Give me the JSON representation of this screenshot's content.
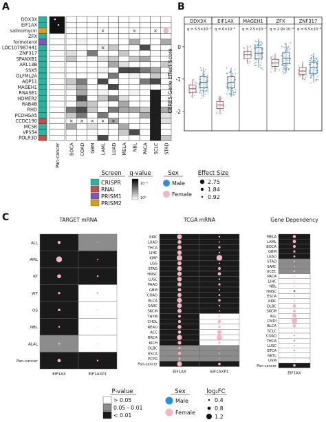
{
  "panel_labels": {
    "a": "A",
    "b": "B",
    "c": "C"
  },
  "panel_a": {
    "genes": [
      "DDX3X",
      "EIF1AX",
      "salinomycin",
      "ZFX",
      "formoterol",
      "LOC107987441",
      "ZNF317",
      "SPANXB1",
      "ARL13B",
      "SSX5",
      "OLFML2A",
      "AQP11",
      "MAGEH1",
      "RNASE1",
      "HOMER2",
      "RAB4B",
      "RHD",
      "PCDHGA5",
      "CCDC190",
      "MC5R",
      "VPS54",
      "POLR3D"
    ],
    "screen_of_gene": [
      "CRISPR",
      "CRISPR",
      "PRISM2",
      "CRISPR",
      "PRISM1",
      "CRISPR",
      "CRISPR",
      "CRISPR",
      "CRISPR",
      "CRISPR",
      "CRISPR",
      "CRISPR",
      "CRISPR",
      "CRISPR",
      "CRISPR",
      "CRISPR",
      "CRISPR",
      "CRISPR",
      "RNAi",
      "CRISPR",
      "CRISPR",
      "RNAi"
    ],
    "pan_cancer_label": "Pan-cancer",
    "cancer_types": [
      "BOCA",
      "COAD",
      "GBM",
      "LAML",
      "LUAD",
      "MELA",
      "NBL",
      "PACA",
      "SCLC",
      "STAD"
    ]
  },
  "legend_a": {
    "screen_title": "Screen",
    "screens": [
      {
        "label": "CRISPR",
        "color": "#2bb5a0"
      },
      {
        "label": "RNAi",
        "color": "#c0504d"
      },
      {
        "label": "PRISM1",
        "color": "#7b59b6"
      },
      {
        "label": "PRISM2",
        "color": "#d4a017"
      }
    ],
    "qvalue_title": "q-value",
    "qvalue_ticks": [
      "10⁻⁵",
      "10⁰"
    ],
    "sex_title": "Sex",
    "sex": [
      {
        "label": "Male",
        "color": "#2b8fe0"
      },
      {
        "label": "Female",
        "color": "#f4b6c2"
      }
    ],
    "effect_title": "Effect Size",
    "effect_values": [
      "2.75",
      "1.84",
      "0.92"
    ]
  },
  "panel_b": {
    "ylabel": "CERES Gene Effect Score",
    "yticks": [
      "0",
      "-1",
      "-2"
    ],
    "genes": [
      {
        "name": "DDX3X",
        "q": "q = 5.5×10⁻¹⁷",
        "female_median": -1.3,
        "male_median": -1.1
      },
      {
        "name": "EIF1AX",
        "q": "q = 6×10⁻⁹",
        "female_median": -1.8,
        "male_median": -1.1
      },
      {
        "name": "MAGEH1",
        "q": "q = 2.5×10⁻¹⁷",
        "female_median": -0.25,
        "male_median": -0.2
      },
      {
        "name": "ZFX",
        "q": "q = 2.9×10⁻¹⁰",
        "female_median": -0.5,
        "male_median": -0.35
      },
      {
        "name": "ZNF317",
        "q": "q = 6.5×10⁻⁸",
        "female_median": -0.75,
        "male_median": -0.65
      }
    ]
  },
  "panel_c": {
    "target": {
      "title": "TARGET mRNA",
      "rows": [
        "ALL",
        "AML",
        "RT",
        "WT",
        "OS",
        "NBL",
        "ALAL",
        "Pan-cancer"
      ],
      "cols": [
        "EIF1AX",
        "EIF1AXP1"
      ]
    },
    "tcga": {
      "title": "TCGA mRNA",
      "rows": [
        "KIRC",
        "LUAD",
        "THCA",
        "LIHC",
        "KIRP",
        "LGG",
        "STAD",
        "HNSC",
        "LUSC",
        "PAAD",
        "GBM",
        "COAD",
        "BLCA",
        "SARC",
        "SKCM",
        "THYM",
        "CHOL",
        "READ",
        "ACC",
        "BRCA",
        "KICH",
        "DLBC",
        "ESCA",
        "PCPG",
        "Pan-cancer"
      ],
      "cols": [
        "EIF1AX",
        "EIF1AXP1"
      ]
    },
    "gene_dep": {
      "title": "Gene Dependency",
      "rows": [
        "MELA",
        "LAML",
        "BOCA",
        "GBM",
        "LUAD",
        "STAD",
        "SARC",
        "UCEC",
        "PACA",
        "LIHC",
        "NBL",
        "HNSC",
        "ESCA",
        "KIRC",
        "DLBC",
        "SKCM",
        "ALL",
        "CMDI",
        "BLCA",
        "SCLC",
        "COAD",
        "THCA",
        "LUSC",
        "BTCA",
        "NKTL",
        "UVM",
        "Pan-cancer"
      ],
      "cols": [
        "EIF1AX"
      ]
    }
  },
  "legend_c": {
    "pvalue_title": "P-value",
    "pvalue": [
      {
        "label": "> 0.05",
        "color": "#ffffff"
      },
      {
        "label": "0.05 - 0.01",
        "color": "#8c8c8c"
      },
      {
        "label": "< 0.01",
        "color": "#1a1a1a"
      }
    ],
    "sex_title": "Sex",
    "sex": [
      {
        "label": "Male",
        "color": "#2b8fe0"
      },
      {
        "label": "Female",
        "color": "#f4b6c2"
      }
    ],
    "fc_title": "log₂FC",
    "fc_values": [
      "0.4",
      "0.8",
      "1.2"
    ]
  }
}
